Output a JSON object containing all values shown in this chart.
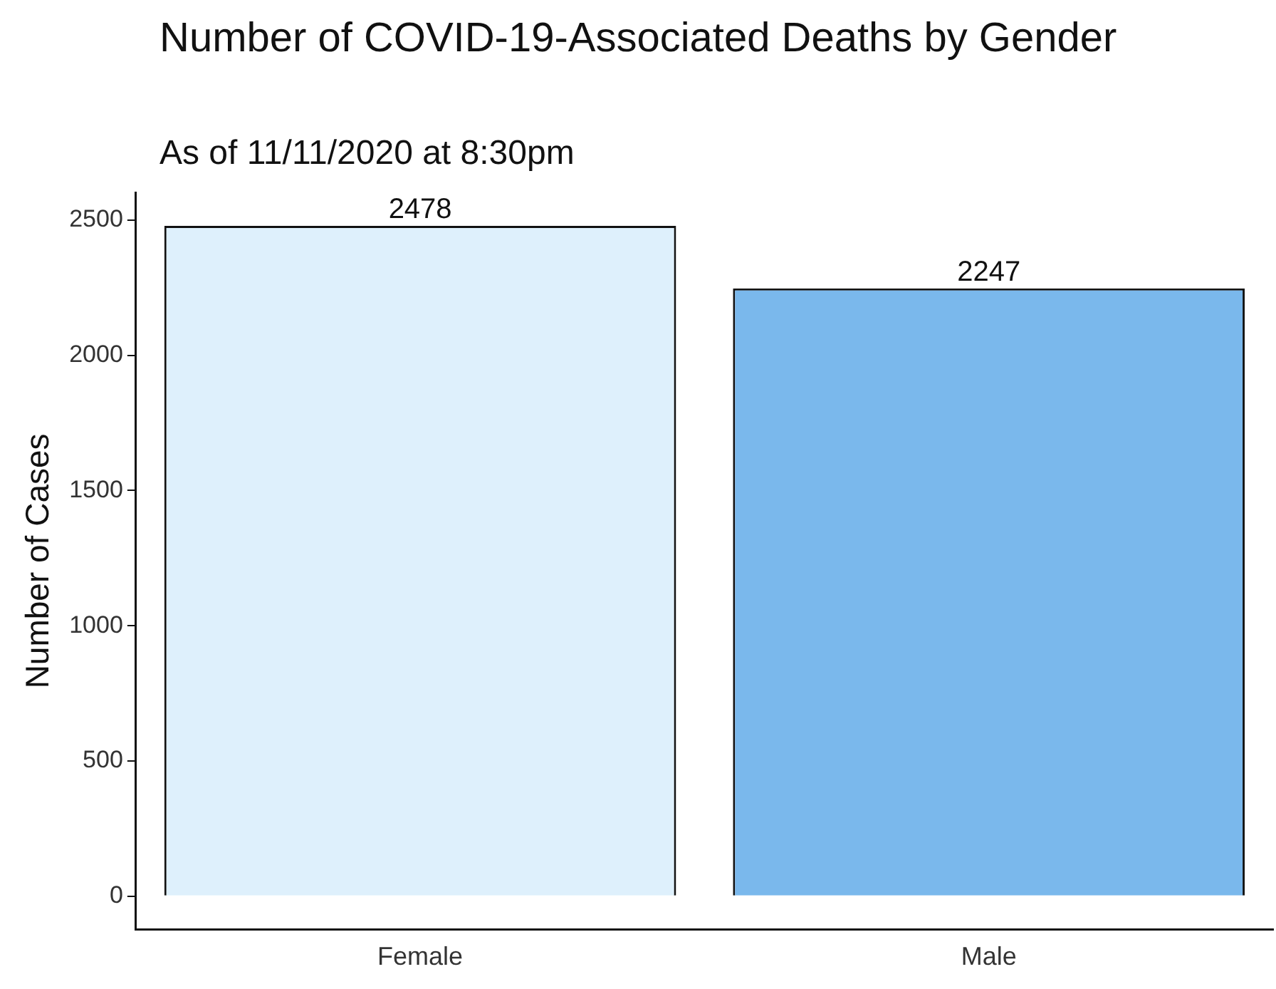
{
  "chart_data": {
    "type": "bar",
    "title": "Number of COVID-19-Associated Deaths by Gender",
    "subtitle": "As of 11/11/2020 at 8:30pm",
    "ylabel": "Number of Cases",
    "categories": [
      "Female",
      "Male"
    ],
    "values": [
      2478,
      2247
    ],
    "colors": [
      "#def0fc",
      "#7ab8ec"
    ],
    "ylim": [
      -124,
      2602
    ],
    "yticks": [
      0,
      500,
      1000,
      1500,
      2000,
      2500
    ],
    "grid": false,
    "legend": false,
    "data_labels": true
  }
}
